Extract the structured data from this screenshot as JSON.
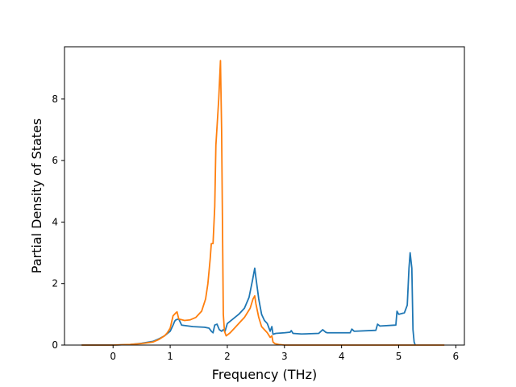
{
  "chart_data": {
    "type": "line",
    "title": "",
    "xlabel": "Frequency (THz)",
    "ylabel": "Partial Density of States",
    "xlim": [
      -0.85,
      6.15
    ],
    "ylim": [
      0,
      9.7
    ],
    "xticks": [
      0,
      1,
      2,
      3,
      4,
      5,
      6
    ],
    "yticks": [
      0,
      2,
      4,
      6,
      8
    ],
    "grid": false,
    "legend": "none",
    "series": [
      {
        "color": "#1f77b4",
        "x": [
          -0.55,
          0.0,
          0.3,
          0.5,
          0.7,
          0.8,
          0.9,
          1.0,
          1.05,
          1.08,
          1.1,
          1.15,
          1.2,
          1.4,
          1.6,
          1.68,
          1.72,
          1.75,
          1.78,
          1.82,
          1.86,
          1.9,
          1.93,
          1.96,
          2.0,
          2.1,
          2.2,
          2.3,
          2.38,
          2.44,
          2.48,
          2.5,
          2.55,
          2.6,
          2.65,
          2.7,
          2.75,
          2.78,
          2.8,
          2.85,
          3.0,
          3.1,
          3.12,
          3.15,
          3.3,
          3.6,
          3.67,
          3.72,
          3.75,
          4.15,
          4.18,
          4.22,
          4.6,
          4.63,
          4.67,
          4.95,
          4.97,
          5.0,
          5.1,
          5.15,
          5.18,
          5.2,
          5.23,
          5.25,
          5.27,
          5.29
        ],
        "values": [
          0,
          0,
          0.02,
          0.06,
          0.12,
          0.2,
          0.3,
          0.45,
          0.65,
          0.78,
          0.82,
          0.85,
          0.65,
          0.6,
          0.58,
          0.55,
          0.45,
          0.4,
          0.65,
          0.68,
          0.5,
          0.45,
          0.5,
          0.45,
          0.7,
          0.85,
          1.0,
          1.2,
          1.55,
          2.1,
          2.5,
          2.2,
          1.5,
          1.0,
          0.8,
          0.7,
          0.45,
          0.6,
          0.35,
          0.38,
          0.4,
          0.42,
          0.47,
          0.38,
          0.36,
          0.38,
          0.5,
          0.42,
          0.4,
          0.4,
          0.52,
          0.45,
          0.48,
          0.68,
          0.62,
          0.65,
          1.1,
          1.0,
          1.05,
          1.3,
          2.5,
          3.0,
          2.5,
          0.5,
          0.1,
          0.0
        ]
      },
      {
        "color": "#ff7f0e",
        "x": [
          -0.55,
          0.0,
          0.3,
          0.5,
          0.7,
          0.8,
          0.9,
          0.95,
          1.0,
          1.05,
          1.1,
          1.12,
          1.15,
          1.25,
          1.35,
          1.45,
          1.55,
          1.62,
          1.66,
          1.7,
          1.72,
          1.75,
          1.78,
          1.8,
          1.85,
          1.88,
          1.9,
          1.92,
          1.93,
          1.95,
          1.98,
          2.05,
          2.15,
          2.3,
          2.4,
          2.45,
          2.48,
          2.5,
          2.55,
          2.6,
          2.7,
          2.75,
          2.78,
          2.8,
          2.83,
          2.9,
          3.0,
          5.8
        ],
        "values": [
          0,
          0,
          0.02,
          0.05,
          0.1,
          0.18,
          0.3,
          0.4,
          0.55,
          0.95,
          1.05,
          1.08,
          0.85,
          0.8,
          0.82,
          0.9,
          1.1,
          1.5,
          2.0,
          2.8,
          3.3,
          3.3,
          4.5,
          6.5,
          8.0,
          9.25,
          7.0,
          3.0,
          1.0,
          0.45,
          0.3,
          0.4,
          0.6,
          0.9,
          1.2,
          1.5,
          1.6,
          1.35,
          0.9,
          0.6,
          0.4,
          0.25,
          0.3,
          0.1,
          0.05,
          0.02,
          0.0,
          0.0
        ]
      }
    ]
  }
}
